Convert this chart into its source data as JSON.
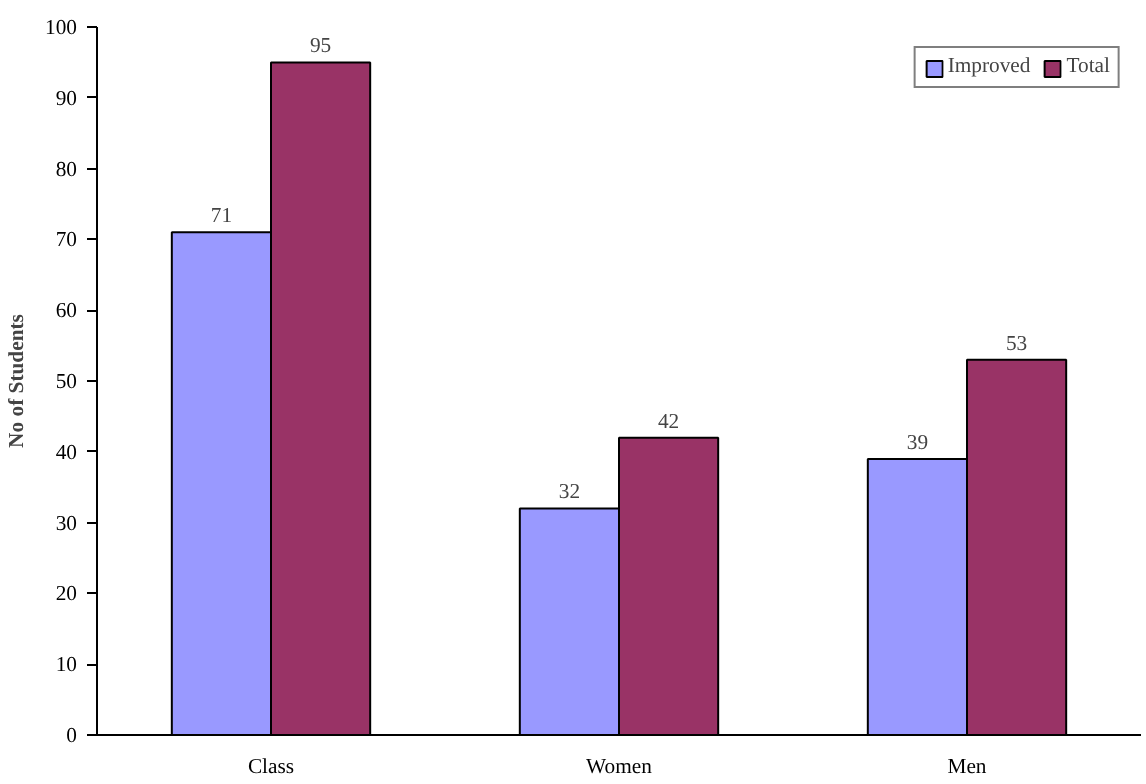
{
  "chart_data": {
    "type": "bar",
    "ylabel": "No of Students",
    "categories": [
      "Class",
      "Women",
      "Men"
    ],
    "series": [
      {
        "name": "Improved",
        "color": "#9999ff",
        "values": [
          71,
          32,
          39
        ]
      },
      {
        "name": "Total",
        "color": "#993366",
        "values": [
          95,
          42,
          53
        ]
      }
    ],
    "ylim": [
      0,
      100
    ],
    "yticks": [
      0,
      10,
      20,
      30,
      40,
      50,
      60,
      70,
      80,
      90,
      100
    ],
    "grid": false,
    "legend": "top right",
    "data_labels": true
  }
}
